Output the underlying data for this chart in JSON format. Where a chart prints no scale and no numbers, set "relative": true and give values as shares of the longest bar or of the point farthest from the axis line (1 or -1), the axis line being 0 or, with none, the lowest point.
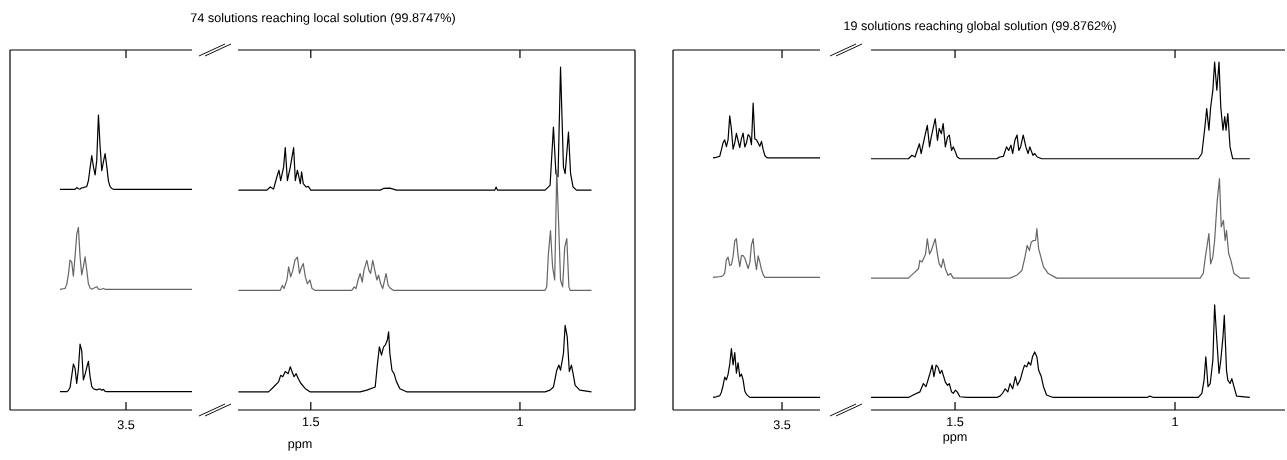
{
  "chart_data": [
    {
      "type": "line",
      "relative": true,
      "annotations": [
        "3.5"
      ],
      "categories": [
        null,
        null,
        null,
        null,
        null,
        null,
        null,
        null,
        null,
        null,
        null,
        null,
        null,
        null,
        null,
        null,
        null,
        null,
        null,
        null,
        null,
        null,
        null,
        null,
        null,
        null,
        null,
        null,
        null,
        null,
        null,
        null,
        null,
        null,
        null,
        null,
        null,
        null,
        null,
        null,
        null,
        null,
        null,
        null,
        null,
        null,
        null,
        null,
        null,
        null,
        null,
        null,
        null,
        null,
        null,
        null,
        null,
        null,
        null,
        null,
        null,
        null,
        null,
        null,
        null,
        null,
        null,
        null,
        null,
        null,
        null,
        null,
        null,
        null,
        null,
        null,
        null,
        null,
        null,
        null
      ],
      "series": [
        {
          "color": "#000000",
          "values": [
            0.748,
            0.748,
            0.748,
            0.748,
            0.748,
            0.748,
            0.748,
            0.748,
            0.748,
            0.748,
            0.754,
            0.75,
            0.749,
            0.753,
            0.754,
            0.756,
            0.757,
            0.777,
            0.821,
            0.862,
            0.825,
            0.797,
            0.847,
            1.0,
            0.893,
            0.811,
            0.842,
            0.869,
            0.825,
            0.776,
            0.757,
            0.751,
            0.748,
            0.748,
            0.748,
            0.748,
            0.748,
            0.748,
            0.748,
            0.748,
            0.748,
            0.748,
            0.748,
            0.748,
            0.748,
            0.748,
            0.748,
            0.748,
            0.748,
            0.748,
            0.748,
            0.748,
            0.748,
            0.748,
            0.748,
            0.748,
            0.748,
            0.748,
            0.748,
            0.748,
            0.748,
            0.748,
            0.748,
            0.748,
            0.748,
            0.748,
            0.748,
            0.748,
            0.748,
            0.748,
            0.748,
            0.748,
            0.748,
            0.748,
            0.748,
            0.748,
            0.748,
            0.748,
            0.748,
            0.748
          ]
        },
        {
          "color": "#666666",
          "values": [
            0.409,
            0.41,
            0.411,
            0.412,
            0.425,
            0.459,
            0.508,
            0.502,
            0.454,
            0.52,
            0.595,
            0.619,
            0.52,
            0.458,
            0.486,
            0.519,
            0.475,
            0.427,
            0.414,
            0.409,
            0.412,
            0.415,
            0.418,
            0.41,
            0.409,
            0.41,
            0.412,
            0.409,
            0.409,
            0.409,
            0.409,
            0.409,
            0.409,
            0.409,
            0.409,
            0.409,
            0.409,
            0.409,
            0.409,
            0.409,
            0.409,
            0.409,
            0.409,
            0.409,
            0.409,
            0.409,
            0.409,
            0.409,
            0.409,
            0.409,
            0.409,
            0.409,
            0.409,
            0.409,
            0.409,
            0.409,
            0.409,
            0.409,
            0.409,
            0.409,
            0.409,
            0.409,
            0.409,
            0.409,
            0.409,
            0.409,
            0.409,
            0.409,
            0.409,
            0.409,
            0.409,
            0.409,
            0.409,
            0.409,
            0.409,
            0.409,
            0.409,
            0.409,
            0.409,
            0.409
          ]
        },
        {
          "color": "#000000",
          "values": [
            0.062,
            0.062,
            0.062,
            0.062,
            0.062,
            0.066,
            0.076,
            0.115,
            0.156,
            0.141,
            0.09,
            0.138,
            0.223,
            0.201,
            0.102,
            0.121,
            0.144,
            0.165,
            0.113,
            0.08,
            0.072,
            0.07,
            0.068,
            0.071,
            0.071,
            0.067,
            0.07,
            0.063,
            0.062,
            0.062,
            0.062,
            0.062,
            0.062,
            0.062,
            0.062,
            0.062,
            0.062,
            0.062,
            0.062,
            0.062,
            0.062,
            0.062,
            0.062,
            0.062,
            0.062,
            0.062,
            0.062,
            0.062,
            0.062,
            0.062,
            0.062,
            0.062,
            0.062,
            0.062,
            0.062,
            0.062,
            0.062,
            0.062,
            0.062,
            0.062,
            0.062,
            0.062,
            0.062,
            0.062,
            0.062,
            0.062,
            0.062,
            0.062,
            0.062,
            0.062,
            0.062,
            0.062,
            0.062,
            0.062,
            0.062,
            0.062,
            0.062,
            0.062,
            0.062,
            0.062
          ]
        }
      ]
    },
    {
      "type": "line",
      "title": "74 solutions reaching local solution (99.8747%)",
      "xlabel": "ppm",
      "relative": true,
      "xlim": [
        1.674,
        0.725
      ],
      "xticks": [
        1.5,
        1
      ],
      "series": [
        {
          "color": "#000000",
          "x": [
            1.673,
            1.605,
            1.597,
            1.589,
            1.581,
            1.576,
            1.572,
            1.565,
            1.561,
            1.556,
            1.549,
            1.541,
            1.537,
            1.532,
            1.525,
            1.522,
            1.518,
            1.511,
            1.506,
            1.5,
            1.334,
            1.326,
            1.311,
            1.295,
            1.06,
            1.057,
            1.054,
            0.94,
            0.928,
            0.92,
            0.914,
            0.909,
            0.903,
            0.896,
            0.892,
            0.884,
            0.879,
            0.873,
            0.865,
            0.829
          ],
          "values": [
            0.641,
            0.641,
            0.65,
            0.644,
            0.68,
            0.699,
            0.669,
            0.708,
            0.765,
            0.669,
            0.708,
            0.765,
            0.669,
            0.699,
            0.66,
            0.694,
            0.66,
            0.65,
            0.652,
            0.641,
            0.641,
            0.646,
            0.647,
            0.641,
            0.641,
            0.65,
            0.641,
            0.641,
            0.655,
            0.825,
            0.689,
            0.68,
            1.0,
            0.708,
            0.689,
            0.81,
            0.689,
            0.65,
            0.641,
            0.641
          ]
        },
        {
          "color": "#666666",
          "x": [
            1.673,
            1.573,
            1.568,
            1.564,
            1.557,
            1.553,
            1.548,
            1.543,
            1.538,
            1.532,
            1.527,
            1.522,
            1.518,
            1.513,
            1.508,
            1.502,
            1.497,
            1.49,
            1.402,
            1.396,
            1.392,
            1.387,
            1.382,
            1.377,
            1.373,
            1.366,
            1.361,
            1.357,
            1.352,
            1.347,
            1.342,
            1.338,
            1.333,
            1.328,
            1.32,
            1.315,
            1.309,
            1.303,
            0.94,
            0.936,
            0.932,
            0.927,
            0.922,
            0.917,
            0.912,
            0.907,
            0.903,
            0.898,
            0.893,
            0.888,
            0.883,
            0.88,
            0.829
          ],
          "values": [
            0.349,
            0.349,
            0.363,
            0.354,
            0.379,
            0.417,
            0.388,
            0.407,
            0.436,
            0.446,
            0.398,
            0.417,
            0.427,
            0.388,
            0.368,
            0.379,
            0.354,
            0.349,
            0.349,
            0.359,
            0.354,
            0.379,
            0.398,
            0.373,
            0.407,
            0.436,
            0.407,
            0.398,
            0.436,
            0.407,
            0.379,
            0.393,
            0.368,
            0.354,
            0.398,
            0.363,
            0.354,
            0.349,
            0.349,
            0.359,
            0.456,
            0.523,
            0.417,
            0.379,
            0.699,
            0.523,
            0.379,
            0.359,
            0.475,
            0.5,
            0.359,
            0.349,
            0.349
          ]
        },
        {
          "color": "#000000",
          "x": [
            1.673,
            1.601,
            1.589,
            1.577,
            1.572,
            1.567,
            1.561,
            1.554,
            1.549,
            1.545,
            1.54,
            1.535,
            1.53,
            1.524,
            1.513,
            1.502,
            1.382,
            1.366,
            1.346,
            1.341,
            1.336,
            1.331,
            1.326,
            1.322,
            1.317,
            1.314,
            1.311,
            1.306,
            1.301,
            1.295,
            1.287,
            1.271,
            0.94,
            0.928,
            0.92,
            0.912,
            0.907,
            0.903,
            0.896,
            0.892,
            0.887,
            0.882,
            0.877,
            0.873,
            0.868,
            0.857,
            0.829
          ],
          "values": [
            0.053,
            0.053,
            0.067,
            0.082,
            0.101,
            0.097,
            0.112,
            0.106,
            0.126,
            0.112,
            0.097,
            0.106,
            0.092,
            0.078,
            0.062,
            0.053,
            0.053,
            0.058,
            0.067,
            0.131,
            0.184,
            0.16,
            0.184,
            0.189,
            0.204,
            0.228,
            0.165,
            0.116,
            0.106,
            0.082,
            0.062,
            0.053,
            0.053,
            0.058,
            0.067,
            0.116,
            0.131,
            0.116,
            0.165,
            0.247,
            0.213,
            0.112,
            0.131,
            0.106,
            0.072,
            0.058,
            0.053
          ]
        }
      ]
    },
    {
      "type": "line",
      "relative": true,
      "annotations": [
        "3.5"
      ],
      "categories": [
        null,
        null,
        null,
        null,
        null,
        null,
        null,
        null,
        null,
        null,
        null,
        null,
        null,
        null,
        null,
        null,
        null,
        null,
        null,
        null,
        null,
        null,
        null,
        null,
        null,
        null,
        null,
        null,
        null,
        null,
        null,
        null,
        null,
        null,
        null,
        null,
        null,
        null,
        null,
        null,
        null,
        null,
        null,
        null,
        null,
        null,
        null,
        null,
        null,
        null,
        null,
        null,
        null,
        null,
        null,
        null,
        null,
        null,
        null,
        null,
        null,
        null,
        null,
        null,
        null
      ],
      "series": [
        {
          "color": "#000000",
          "values": [
            0.821,
            0.822,
            0.823,
            0.825,
            0.826,
            0.847,
            0.87,
            0.88,
            0.858,
            0.88,
            0.958,
            0.915,
            0.85,
            0.87,
            0.901,
            0.877,
            0.855,
            0.884,
            0.902,
            0.857,
            0.87,
            0.897,
            0.891,
            0.864,
            1.0,
            0.883,
            0.88,
            0.87,
            0.859,
            0.875,
            0.848,
            0.829,
            0.823,
            0.821,
            0.821,
            0.821,
            0.821,
            0.821,
            0.821,
            0.821,
            0.821,
            0.821,
            0.821,
            0.821,
            0.821,
            0.821,
            0.821,
            0.821,
            0.821,
            0.821,
            0.821,
            0.821,
            0.821,
            0.821,
            0.821,
            0.821,
            0.821,
            0.821,
            0.821,
            0.821,
            0.821,
            0.821,
            0.821,
            0.821,
            0.821
          ]
        },
        {
          "color": "#666666",
          "values": [
            0.432,
            0.433,
            0.433,
            0.434,
            0.434,
            0.435,
            0.438,
            0.446,
            0.489,
            0.498,
            0.471,
            0.473,
            0.5,
            0.551,
            0.558,
            0.503,
            0.467,
            0.503,
            0.503,
            0.495,
            0.478,
            0.461,
            0.48,
            0.538,
            0.558,
            0.492,
            0.457,
            0.502,
            0.482,
            0.457,
            0.441,
            0.432,
            0.432,
            0.432,
            0.432,
            0.432,
            0.432,
            0.432,
            0.432,
            0.432,
            0.432,
            0.432,
            0.432,
            0.432,
            0.432,
            0.432,
            0.432,
            0.432,
            0.432,
            0.432,
            0.432,
            0.432,
            0.432,
            0.432,
            0.432,
            0.432,
            0.432,
            0.432,
            0.432,
            0.432,
            0.432,
            0.432,
            0.432,
            0.432,
            0.432
          ]
        },
        {
          "color": "#000000",
          "values": [
            0.041,
            0.042,
            0.043,
            0.045,
            0.046,
            0.058,
            0.079,
            0.107,
            0.098,
            0.116,
            0.149,
            0.2,
            0.147,
            0.187,
            0.12,
            0.154,
            0.109,
            0.117,
            0.098,
            0.062,
            0.051,
            0.046,
            0.041,
            0.041,
            0.041,
            0.041,
            0.041,
            0.041,
            0.041,
            0.041,
            0.041,
            0.041,
            0.041,
            0.041,
            0.041,
            0.041,
            0.041,
            0.041,
            0.041,
            0.041,
            0.041,
            0.041,
            0.041,
            0.041,
            0.041,
            0.041,
            0.041,
            0.041,
            0.041,
            0.041,
            0.041,
            0.041,
            0.041,
            0.041,
            0.041,
            0.041,
            0.041,
            0.041,
            0.041,
            0.041,
            0.041,
            0.041,
            0.041,
            0.041,
            0.041
          ]
        }
      ]
    },
    {
      "type": "line",
      "title": "19 solutions reaching global solution (99.8762%)",
      "xlabel": "ppm",
      "relative": true,
      "xlim": [
        1.691,
        0.75
      ],
      "xticks": [
        1.5,
        1
      ],
      "series": [
        {
          "color": "#000000",
          "x": [
            1.691,
            1.606,
            1.598,
            1.591,
            1.581,
            1.577,
            1.569,
            1.563,
            1.558,
            1.554,
            1.549,
            1.545,
            1.54,
            1.536,
            1.531,
            1.527,
            1.522,
            1.517,
            1.513,
            1.508,
            1.504,
            1.499,
            1.495,
            1.489,
            1.405,
            1.399,
            1.39,
            1.383,
            1.378,
            1.373,
            1.369,
            1.364,
            1.359,
            1.355,
            1.351,
            1.345,
            1.339,
            1.334,
            1.33,
            1.323,
            1.319,
            1.313,
            1.303,
            0.947,
            0.939,
            0.932,
            0.928,
            0.923,
            0.919,
            0.914,
            0.91,
            0.905,
            0.9,
            0.896,
            0.891,
            0.887,
            0.884,
            0.88,
            0.875,
            0.869,
            0.83
          ],
          "values": [
            0.722,
            0.722,
            0.732,
            0.727,
            0.765,
            0.737,
            0.785,
            0.818,
            0.756,
            0.785,
            0.814,
            0.837,
            0.775,
            0.809,
            0.794,
            0.823,
            0.756,
            0.785,
            0.79,
            0.746,
            0.756,
            0.741,
            0.727,
            0.722,
            0.722,
            0.727,
            0.729,
            0.756,
            0.746,
            0.761,
            0.737,
            0.775,
            0.79,
            0.746,
            0.756,
            0.79,
            0.756,
            0.737,
            0.756,
            0.732,
            0.737,
            0.727,
            0.722,
            0.722,
            0.737,
            0.814,
            0.866,
            0.804,
            0.87,
            0.919,
            1.0,
            0.919,
            1.0,
            0.87,
            0.804,
            0.843,
            0.804,
            0.852,
            0.756,
            0.722,
            0.722
          ]
        },
        {
          "color": "#666666",
          "x": [
            1.691,
            1.606,
            1.595,
            1.583,
            1.58,
            1.575,
            1.567,
            1.563,
            1.558,
            1.554,
            1.549,
            1.545,
            1.54,
            1.536,
            1.531,
            1.527,
            1.522,
            1.516,
            1.51,
            1.504,
            1.375,
            1.36,
            1.348,
            1.341,
            1.336,
            1.331,
            1.327,
            1.322,
            1.317,
            1.314,
            1.31,
            1.305,
            1.299,
            1.288,
            1.269,
            0.943,
            0.936,
            0.931,
            0.923,
            0.919,
            0.914,
            0.91,
            0.904,
            0.899,
            0.895,
            0.89,
            0.886,
            0.883,
            0.878,
            0.873,
            0.866,
            0.852,
            0.83
          ],
          "values": [
            0.379,
            0.379,
            0.392,
            0.406,
            0.43,
            0.425,
            0.448,
            0.492,
            0.448,
            0.458,
            0.477,
            0.492,
            0.448,
            0.42,
            0.41,
            0.434,
            0.406,
            0.387,
            0.392,
            0.379,
            0.379,
            0.387,
            0.401,
            0.44,
            0.473,
            0.458,
            0.482,
            0.487,
            0.487,
            0.521,
            0.463,
            0.44,
            0.411,
            0.392,
            0.379,
            0.379,
            0.392,
            0.44,
            0.507,
            0.42,
            0.44,
            0.487,
            0.603,
            0.665,
            0.526,
            0.545,
            0.487,
            0.516,
            0.449,
            0.43,
            0.392,
            0.379,
            0.379
          ]
        },
        {
          "color": "#000000",
          "x": [
            1.691,
            1.606,
            1.595,
            1.58,
            1.572,
            1.566,
            1.557,
            1.552,
            1.548,
            1.543,
            1.539,
            1.534,
            1.53,
            1.522,
            1.517,
            1.513,
            1.508,
            1.504,
            1.499,
            1.495,
            1.489,
            1.473,
            1.405,
            1.398,
            1.392,
            1.386,
            1.38,
            1.375,
            1.369,
            1.363,
            1.358,
            1.352,
            1.346,
            1.342,
            1.337,
            1.333,
            1.328,
            1.324,
            1.319,
            1.314,
            1.31,
            1.304,
            1.299,
            1.292,
            1.277,
            1.064,
            1.057,
            1.049,
            0.947,
            0.939,
            0.934,
            0.93,
            0.925,
            0.92,
            0.914,
            0.91,
            0.905,
            0.9,
            0.896,
            0.891,
            0.888,
            0.883,
            0.88,
            0.875,
            0.871,
            0.866,
            0.86,
            0.83
          ],
          "values": [
            0.036,
            0.036,
            0.043,
            0.052,
            0.076,
            0.067,
            0.105,
            0.129,
            0.096,
            0.129,
            0.124,
            0.105,
            0.114,
            0.08,
            0.071,
            0.076,
            0.052,
            0.048,
            0.057,
            0.052,
            0.038,
            0.036,
            0.036,
            0.04,
            0.048,
            0.061,
            0.052,
            0.076,
            0.061,
            0.096,
            0.071,
            0.086,
            0.114,
            0.129,
            0.124,
            0.138,
            0.129,
            0.153,
            0.167,
            0.153,
            0.114,
            0.096,
            0.067,
            0.043,
            0.036,
            0.036,
            0.04,
            0.036,
            0.036,
            0.048,
            0.086,
            0.153,
            0.067,
            0.076,
            0.143,
            0.302,
            0.201,
            0.105,
            0.143,
            0.21,
            0.272,
            0.114,
            0.086,
            0.076,
            0.09,
            0.067,
            0.04,
            0.036
          ]
        }
      ]
    }
  ]
}
